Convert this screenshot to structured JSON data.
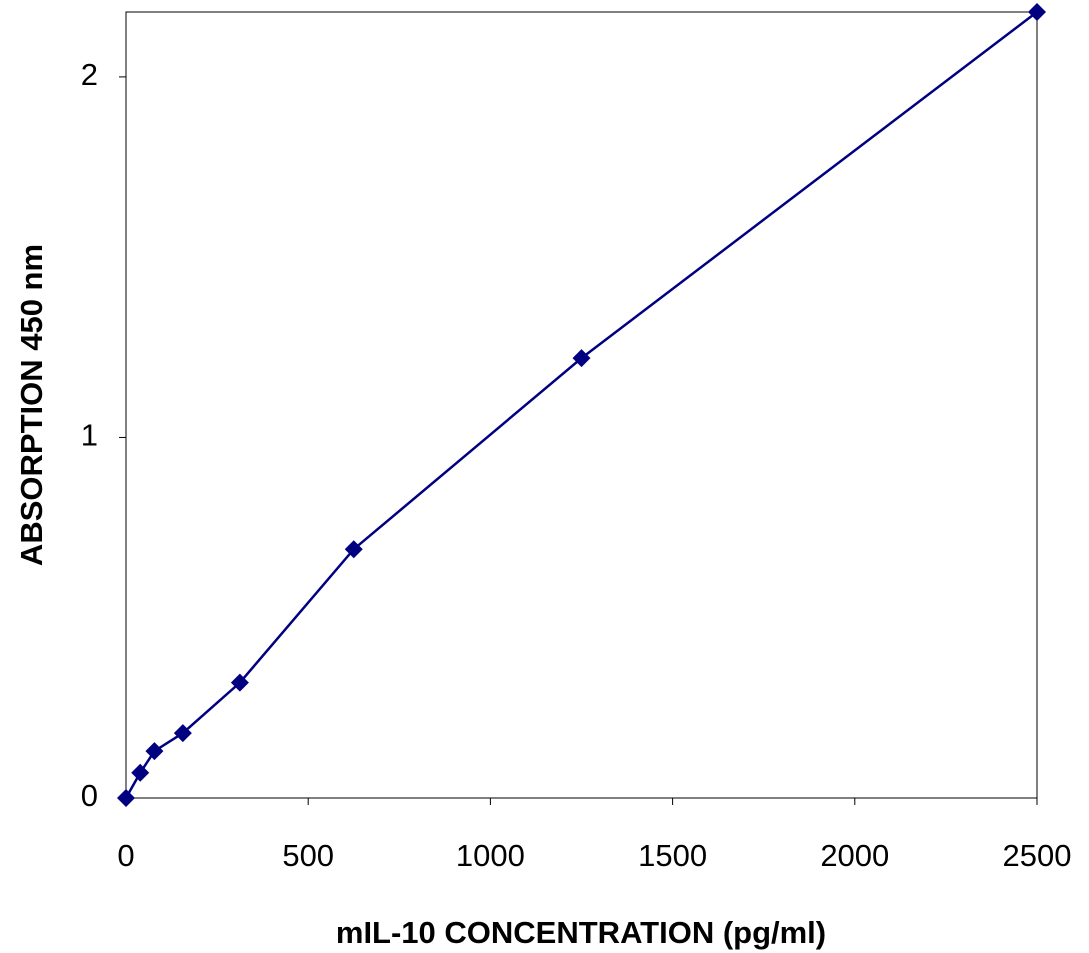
{
  "chart_data": {
    "type": "line",
    "x_label": "mIL-10 CONCENTRATION (pg/ml)",
    "y_label": "ABSORPTION 450 nm",
    "series": [
      {
        "color": "#000080",
        "x": [
          0,
          39,
          78,
          156,
          312.5,
          625,
          1250,
          2500
        ],
        "values": [
          0,
          0.07,
          0.13,
          0.18,
          0.32,
          0.69,
          1.22,
          2.18
        ]
      }
    ],
    "xlim": [
      0,
      2500
    ],
    "xticks": [
      0,
      500,
      1000,
      1500,
      2000,
      2500
    ],
    "ylim": [
      0,
      2.18
    ],
    "yticks": [
      0,
      1,
      2
    ]
  }
}
